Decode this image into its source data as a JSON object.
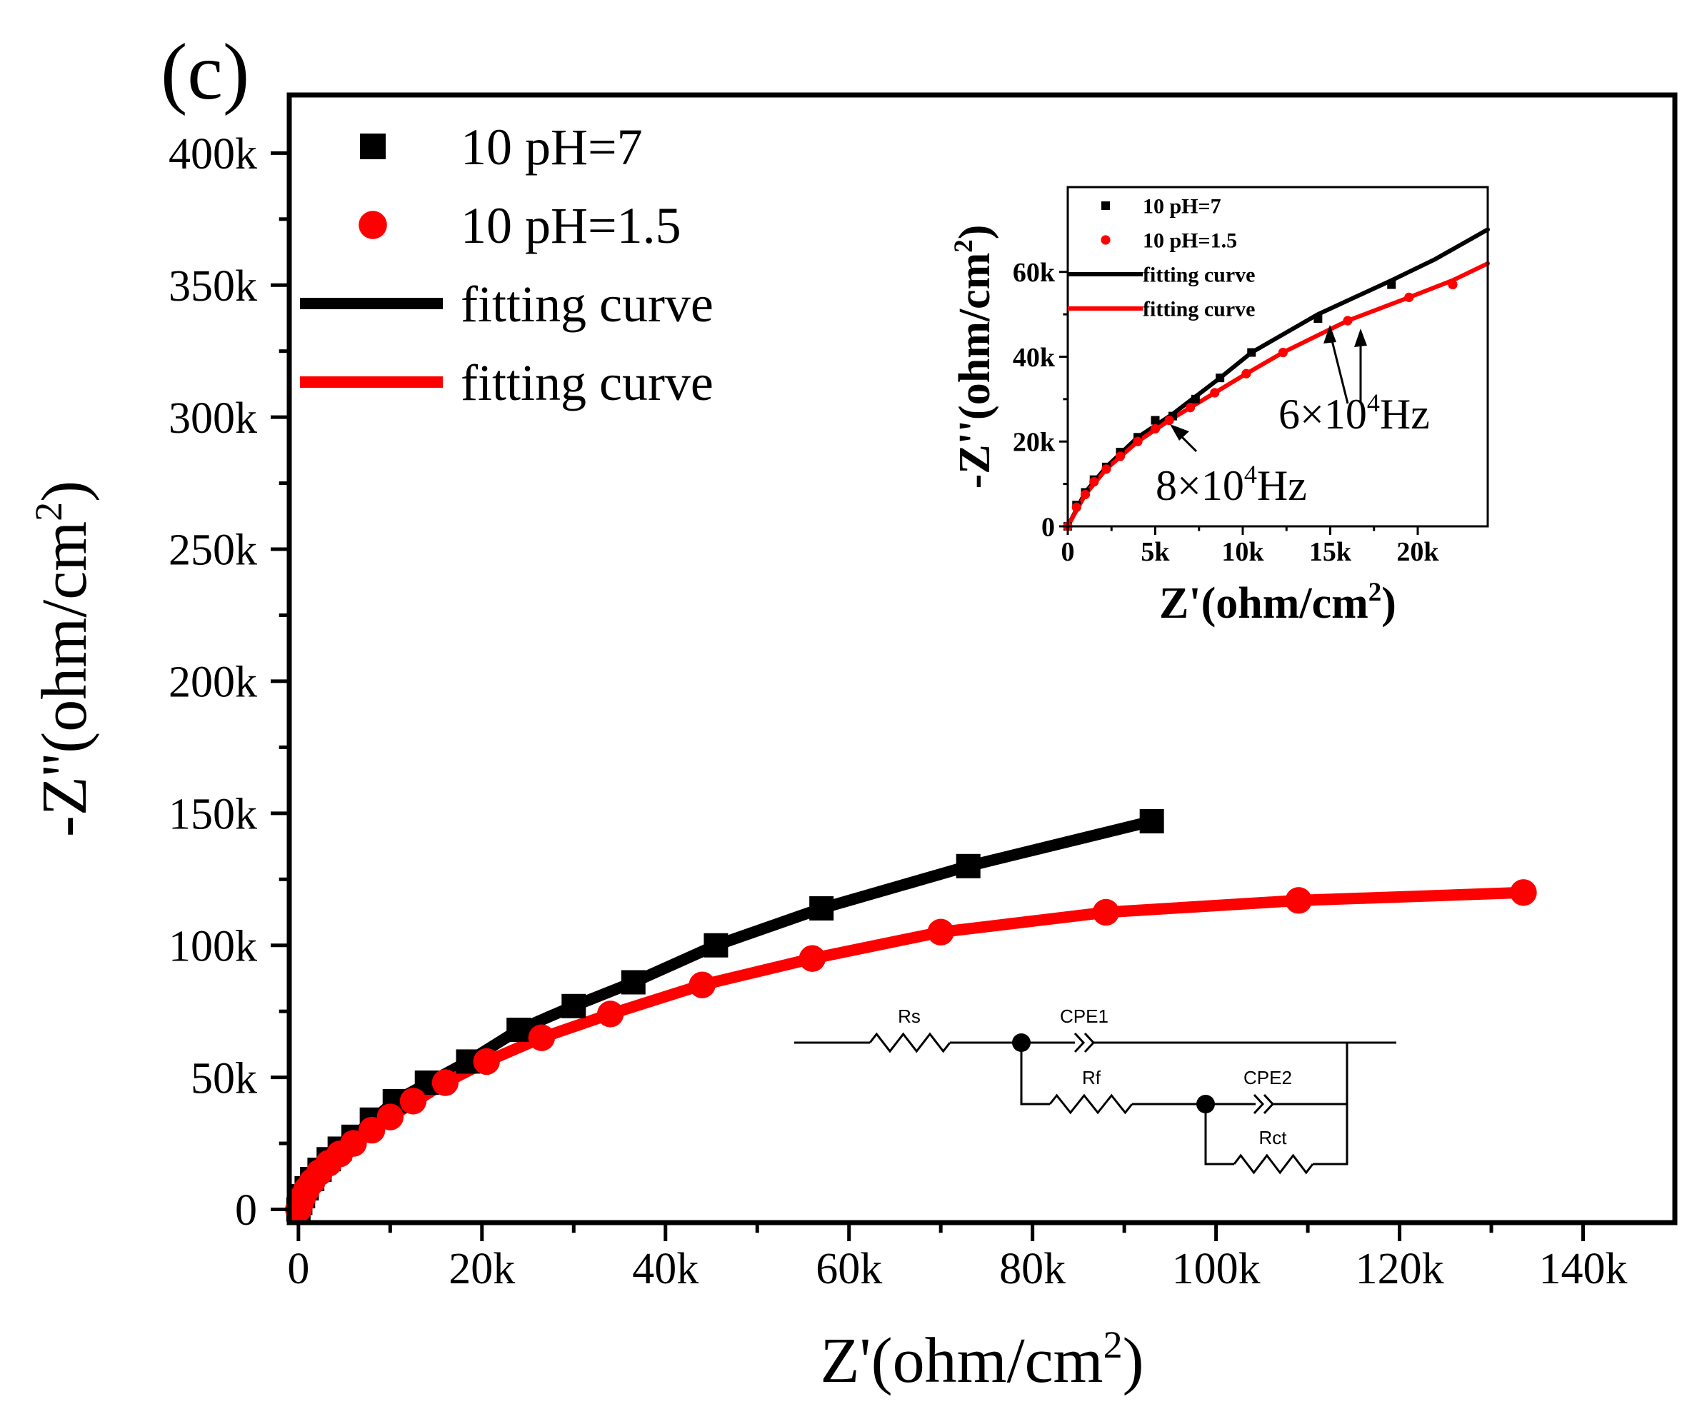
{
  "panel_label": "(c)",
  "colors": {
    "series1": "#000000",
    "series2": "#ff0000",
    "axis": "#000000",
    "background": "#ffffff"
  },
  "chart_data": [
    {
      "id": "main",
      "type": "scatter",
      "xlabel": "Z'(ohm/cm",
      "xlabel_sup": "2",
      "xlabel_close": ")",
      "ylabel": "-Z''(ohm/cm",
      "ylabel_sup": "2",
      "ylabel_close": ")",
      "xlim": [
        -1000,
        150000
      ],
      "ylim": [
        -5000,
        422000
      ],
      "xticks": [
        0,
        20000,
        40000,
        60000,
        80000,
        100000,
        120000,
        140000
      ],
      "xtick_labels": [
        "0",
        "20k",
        "40k",
        "60k",
        "80k",
        "100k",
        "120k",
        "140k"
      ],
      "yticks": [
        0,
        50000,
        100000,
        150000,
        200000,
        250000,
        300000,
        350000,
        400000
      ],
      "ytick_labels": [
        "0",
        "50k",
        "100k",
        "150k",
        "200k",
        "250k",
        "300k",
        "350k",
        "400k"
      ],
      "legend": [
        "10 pH=7",
        "10 pH=1.5",
        "fitting curve",
        "fitting curve"
      ],
      "legend_position": "top-left",
      "series": [
        {
          "name": "10 pH=7",
          "marker": "square",
          "x": [
            0,
            200,
            500,
            900,
            1500,
            2300,
            3300,
            4500,
            6000,
            8000,
            10500,
            14000,
            18500,
            24000,
            30000,
            36500,
            45500,
            57000,
            73000,
            93000
          ],
          "y": [
            0,
            2500,
            5000,
            8000,
            11500,
            15000,
            19000,
            23000,
            27500,
            34000,
            41000,
            48000,
            56000,
            68000,
            77000,
            86000,
            100000,
            114000,
            130000,
            147000
          ]
        },
        {
          "name": "10 pH=1.5",
          "marker": "circle",
          "x": [
            0,
            200,
            500,
            900,
            1500,
            2300,
            3300,
            4500,
            6000,
            8000,
            10000,
            12500,
            16000,
            20500,
            26500,
            34000,
            44000,
            56000,
            70000,
            88000,
            109000,
            133500
          ],
          "y": [
            0,
            2200,
            4800,
            7500,
            10500,
            14000,
            17500,
            21000,
            25000,
            30000,
            35000,
            41000,
            48000,
            56000,
            65000,
            74000,
            85000,
            95000,
            105000,
            112500,
            117000,
            120000
          ]
        }
      ],
      "fits": [
        {
          "name": "fitting curve",
          "x": [
            0,
            500,
            1500,
            3300,
            6000,
            10500,
            18500,
            24000,
            30000,
            36500,
            45500,
            57000,
            73000,
            93000
          ],
          "y": [
            0,
            5000,
            11500,
            19000,
            27500,
            41000,
            56000,
            68000,
            77000,
            86000,
            100000,
            114000,
            130000,
            147000
          ]
        },
        {
          "name": "fitting curve",
          "x": [
            0,
            500,
            1500,
            3300,
            6000,
            10000,
            16000,
            20500,
            26500,
            34000,
            44000,
            56000,
            70000,
            88000,
            109000,
            133500
          ],
          "y": [
            0,
            4800,
            10500,
            17500,
            25000,
            35000,
            48000,
            56000,
            65000,
            74000,
            85000,
            95000,
            105000,
            112500,
            117000,
            120000
          ]
        }
      ]
    },
    {
      "id": "inset",
      "type": "scatter",
      "xlabel": "Z'(ohm/cm",
      "xlabel_sup": "2",
      "xlabel_close": ")",
      "ylabel": "-Z''(ohm/cm",
      "ylabel_sup": "2",
      "ylabel_close": ")",
      "xlim": [
        0,
        24000
      ],
      "ylim": [
        0,
        80000
      ],
      "xticks": [
        0,
        5000,
        10000,
        15000,
        20000
      ],
      "xtick_labels": [
        "0",
        "5k",
        "10k",
        "15k",
        "20k"
      ],
      "yticks": [
        0,
        20000,
        40000,
        60000
      ],
      "ytick_labels": [
        "0",
        "20k",
        "40k",
        "60k"
      ],
      "legend": [
        "10 pH=7",
        "10 pH=1.5",
        "fitting curve",
        "fitting curve"
      ],
      "legend_position": "top-left",
      "annotations": [
        {
          "text": "6×10",
          "sup": "4",
          "suffix": "Hz",
          "target_x": 14300,
          "target_y": 49000
        },
        {
          "text": "8×10",
          "sup": "4",
          "suffix": "Hz",
          "target_x": 5800,
          "target_y": 25000
        }
      ],
      "series": [
        {
          "name": "10 pH=7",
          "marker": "square",
          "x": [
            0,
            500,
            1000,
            1500,
            2200,
            3000,
            4000,
            5000,
            6000,
            7300,
            8700,
            10500,
            14300,
            18500
          ],
          "y": [
            0,
            5000,
            8000,
            11000,
            14000,
            17500,
            21000,
            25000,
            26000,
            30000,
            35000,
            41000,
            49000,
            57000
          ]
        },
        {
          "name": "10 pH=1.5",
          "marker": "circle",
          "x": [
            0,
            500,
            1000,
            1500,
            2200,
            3000,
            4000,
            5000,
            5800,
            7000,
            8400,
            10200,
            12300,
            16000,
            19500,
            22000
          ],
          "y": [
            0,
            4500,
            7500,
            10500,
            13500,
            16500,
            20000,
            23000,
            25000,
            28000,
            31500,
            36000,
            41000,
            48500,
            54000,
            57000
          ]
        }
      ],
      "fits": [
        {
          "name": "fitting curve",
          "x": [
            0,
            1000,
            2200,
            4000,
            6000,
            8700,
            10500,
            14300,
            18500,
            21000,
            24000
          ],
          "y": [
            0,
            8000,
            14000,
            21000,
            26500,
            35000,
            41000,
            50000,
            58000,
            63000,
            70000
          ]
        },
        {
          "name": "fitting curve",
          "x": [
            0,
            1000,
            2200,
            4000,
            5800,
            8400,
            10200,
            12300,
            16000,
            19500,
            22000,
            24000
          ],
          "y": [
            0,
            7500,
            13500,
            20000,
            25000,
            31500,
            36000,
            41000,
            48500,
            54000,
            58000,
            62000
          ]
        }
      ]
    }
  ],
  "circuit": {
    "labels": [
      "Rs",
      "CPE1",
      "Rf",
      "CPE2",
      "Rct"
    ]
  }
}
